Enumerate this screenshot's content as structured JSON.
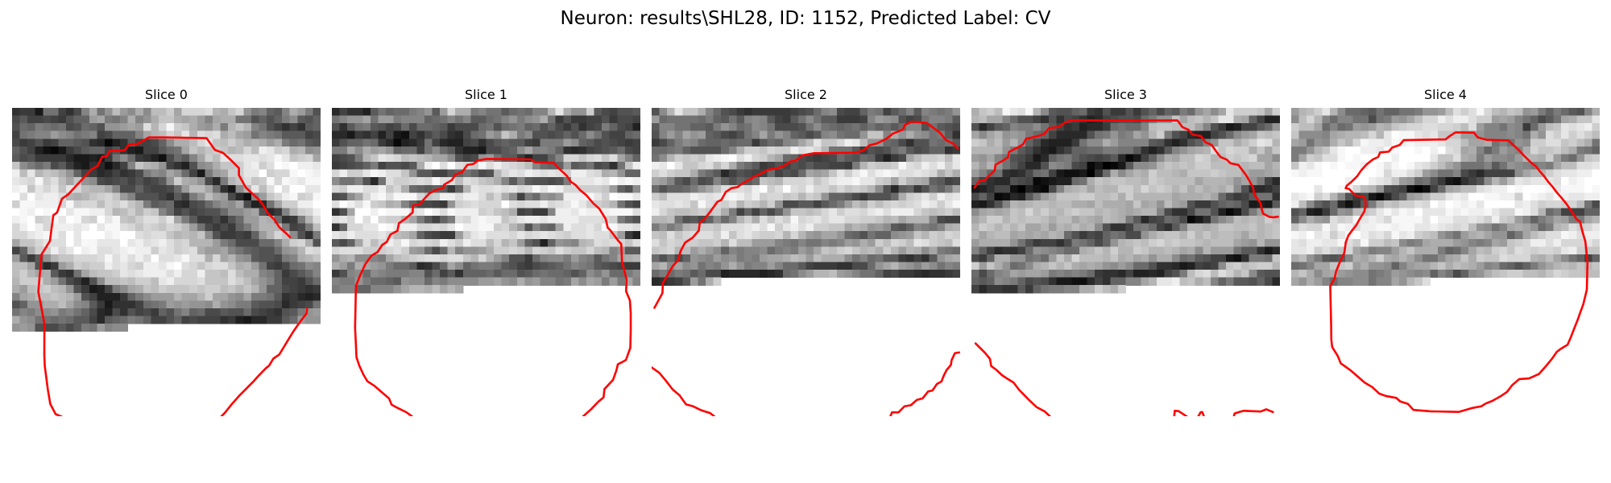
{
  "title": "Neuron: results\\SHL28, ID: 1152, Predicted Label: CV",
  "contour_color": "#ff0000",
  "panels": [
    {
      "title": "Slice 0",
      "contour_segments": [
        "M 4.19,28.00 L 3.40,23.84 L 3.82,19.02 L 4.91,17.26 L 5.34,13.93 L 5.83,13.59 L 6.48,11.77 L 7.24,11.26 L 10.28,7.99 L 11.08,7.55 L 11.68,6.33 L 12.31,6.25 L 12.62,5.60 L 14.58,5.52 L 15.17,4.75 L 16.23,4.68 L 17.74,3.83 L 20.00,3.83 L 25.22,3.93 L 26.30,5.46 L 27.34,5.83 L 28.33,6.73 L 29.41,7.81 L 29.41,8.73 L 30.32,10.35 L 31.98,11.89 L 32.48,12.51 L 33.15,13.66 L 34.00,14.48 L 34.64,15.48 L 35.59,16.33 L 36.04,16.78",
        "M 4.19,28.00 L 4.18,32.08 L 4.24,33.50 L 4.64,36.56 L 4.95,38.41 L 5.65,39.74 L 6.54,40.11 L 7.31,41.00 L 8.47,41.25 L 10.39,42.39 L 11.49,42.51 L 11.83,43.00 L 12.42,43.58 L 14.88,43.59 L 15.51,44.05 L 16.48,44.11 L 17.42,44.63 L 19.48,44.72 L 20.00,44.66 L 21.70,44.46 L 22.65,43.79 L 23.14,43.42 L 24.18,42.55 L 24.82,41.88 L 25.68,41.68 L 26.30,40.88 L 27.60,39.55 L 28.46,38.47 L 29.44,37.36 L 30.29,36.51 L 30.84,35.95 L 31.33,35.46 L 31.86,34.86 L 32.87,33.81 L 33.33,33.43 L 33.88,32.52 L 34.64,32.01 L 35.91,29.92 L 36.50,28.96 L 37.47,27.58 L 38.19,26.66 L 38.24,26.06"
      ],
      "pixels": "BgcHAw4OCAYJEBUOEhcTERURFxcZFBoaGhsWFRgaEg8QDAsQFRMPCgkLCAgJCAcKDAwTFA8OEBUQEhUYGBUUFRMQFBUVDg4KDAoMDxELCgwKDQwPDg0OCQoNDAoSEhMUExsWGh4ZGBUTEhUPFhgWEA4KCAYIBgsMCA4PEBATERAODxAICQwMDBAUFhcaGBwWGxobFRcUEw4QDw4LCwsICQkHCAoHCAwMCwoGBQEEBgsICAkMERUVFxocGBcZFxUWFRMVDw0OCwoMCggEAgEDBwkLDAwICgYEAwgICw0OFBgWGBkYFhcaFx0cGRoVFhESCwkKBwcHBwUDAwQDBw4RDQcGBAIJDQsQFBkXHBsbHBwbHB4cGBkaFBgRDw0PCQsHBAMGBQIFCBAYFhUSCAYEChESFRgYGRwdGRsfHh8dHRwdFxwWGBcVEgwIBwUGCAYHCQ8REBQSDQgDDxMUGRkcHB8ZGhoeIB4dHBsaHhkbFxQYEhEJCAkKCAoICQsSGRUUEgkFDxYYGxgZHhoeHRweHh0eGBwaHBgcGhcWFhQQCQkMCQgICQ0TFxcUDgYDERYcFxsfGx8fHBwfGyAcHR0bFhUWGBkaGBMQCgoKCAYLCA8SFxQTCQUCEBMYGh0eGRoeGR4eHR0dGh4ZGhoXGhkbGBYPCwwNBgUJCg0QEhEUCQQFDhQZGR0dHx8eHR8eICAcHh4dHRoWFxkWGRgQDQgKCAkKCg0RERMUCgUHEBYZGh0dHh8ZGh4cHx4aGR8cHhgXGRsbGRwUDwsHBwkGCg0TExYVDQYHDxYbGh0gHRodHR0cHSIcHh4bGhgaGRgaGRcTDgkHCQcMDxMWFhYPCAkPFxoaHB0eHRsfHB8hIB0eHyEbGhsbGBYXFhgRCgcHCAcMExYaGBEKBg8UGBgaHBsbHxweHhwcHB8cHRscHRsZGhYWFhMPDQkJCQ0NEBUZGhUKCAwVGRkdGhwgHR4bGxwdHh0dGRwbGRobFRMTFBAODAsKCg0SExYbGhMLBwsSFhgYGhoaGx4bHRsdGx8bGxweGxsVGhQWEhELCgoJDxAVFhgXFxQKBQcTFRkYGRkdGxwaGR0dHB4fGxoYGhsbGBUWEw4IBwkNDhEQFxkWFBULBwYOFBcYGBkcGxwdHR0bHRoaHRgYFxsXFRUQDwwHCQsNEBYZGRkVEw4JBwQKERcXGBcZGRccHRoaGhsYGBgbGRcUEhAMCAgHCg0VExcYGRcWEgoHAwQIDxEUFRgXGRgYGBkYGRkXGBYYFhIMDAkIBwYHEBQVFxcYFxYTCggEBAQHDA8RExMTFhQUFhkUFBIRFA8PDgsGBwUEBQoMEhIVFRcUERALBwMGBgYIDQ4PExITEhIRFRIRDw8LCgoJBQcICQ4OEA8RERIPEA4MCQUECQYKCAkHDAoOEAwNCQkLCgoNCQgHBgoLDxITFRIRDg4NDg0LCwgFCwwNDw4MCAgKDAgJCAgIBgcEAwUFBwcLDRMSEhITEgoJCQsJCw8OExAREQ=="
    },
    {
      "title": "Slice 1",
      "contour_segments": [
        "M 3.01,28.55 L 3.12,23.12 L 3.66,21.74 L 4.34,20.26 L 5.13,19.18 L 5.92,18.71 L 6.53,17.78 L 7.11,17.40 L 7.61,16.41 L 8.50,15.95 L 8.69,14.97 L 9.58,14.35 L 10.48,13.56 L 10.51,12.67 L 11.39,12.49 L 11.97,11.81 L 12.62,11.12 L 13.34,10.70 L 14.45,10.39 L 14.54,9.97 L 15.55,9.37 L 16.04,8.64 L 16.91,8.32 L 17.56,7.40 L 18.36,7.27 L 18.94,6.82 L 20.00,6.63 L 25.81,6.69 L 26.32,7.06 L 28.76,7.14 L 29.37,7.80 L 30.46,8.81 L 30.97,9.58 L 31.59,10.00 L 32.19,10.67 L 33.01,11.35 L 33.89,12.38 L 34.69,13.10 L 35.13,13.82 L 35.50,14.40 L 35.77,15.54 L 36.14,15.93 L 37.09,17.19 L 37.52,17.65 L 37.62,20.00 L 38.03,21.52 L 38.21,22.31 L 38.15,23.80 L 38.64,24.97 L 38.75,26.66 L 38.75,28.77 L 38.70,31.12 L 38.14,32.68 L 37.94,32.82 L 37.08,33.27 L 36.89,34.06 L 36.46,35.28 L 35.34,36.49 L 35.23,37.56 L 34.56,38.11 L 33.63,39.08 L 32.61,40.00 L 31.55,40.84 L 30.44,41.44 L 29.45,41.97 L 28.42,42.21 L 27.20,42.50 L 26.44,42.57 L 24.62,42.62 L 23.61,42.68 L 21.15,42.75 L 20.60,43.23 L 18.66,43.33 L 18.24,42.73 L 15.34,42.61 L 14.33,41.86 L 13.15,41.80 L 12.06,41.17 L 10.56,40.15 L 9.66,39.49 L 8.54,38.94 L 7.75,38.51 L 7.42,37.71 L 6.31,36.75 L 5.55,36.09 L 4.60,35.46 L 4.08,34.58 L 3.56,33.45 L 3.19,32.36 L 3.12,30.75 L 3.01,28.55"
      ],
      "pixels": "BQgGBgQLDgwNDQ8QEgsTGhUVDxAODgsNDg0QEBYcFRISGQsJCAoKCw4QEhIUDhMTDxAQEAwNDhAOEAsLDQ4QEg8REhUOBwoHBwgICgcJCQgKBgsODwsKCAkNCQ0NDAsHCQkJDQ4KDQ4PDA0KDAkHCgYICQ8MCQgEBQUDBwYIBAgDAggGCQsJBgUJDQ4TERgVDxEKCgkKDAoNEQ4KCAgMDQcKDAwODQcFAQQFBw4IBQQECAkGCQsMCwsIBw8PDxMRDAsJCgkIBwgPDxQRFRMUEgwNDQgOEQ0LBgQEAwkJCwwRFBAQDwwGBQYICQoLDQkICAkKDxYYHBsaFxgXFhQUEQoICRITDgsLBwQICAwQGhoYGhsYGxQQDAcICQoMDwgKCgkLFR0gGx8bGhkeGx0bGhkXEA0MDBMLDA4JCgYOGB0aHRkZHB4dGxsYEgsLCAgLDA4MCQoWGhwbHRwbHBsZHR0bGhUWEgwMEQ4OEAoFDhsZGRobGh4bGxcbGhgXFRALEAsKCgkKDxwcHB0cHx0eHRoZHR0bGx0YGhUNDAsMCwcMFhwbGxwbHBobHhweHRoaGRkZGBMMChEJChEUGh0eGx4eHhoYGR0dGx0dGxcaFREIDw0SERMdHR0eHBkfHh4cGx8dGx4ZGBUWEAwJCQgHEhkaGxoaGh8bGhsbHRobHB4cGRkYFg4KCAYKFB8gHSIeHh4bHB8dGx4dHR0ZGhgXFQgJBwcQHR0cHh0dHR4eHhsbHBofGx8aGRkWFA8LCAwPGxodHh0dGBocHR0cHR0dHRsbGxoZDwwKBgwaGhwcHx4cHR0aGhsaHCAdHR4eGRoWEwoQDQwUHRsbHBoeHhwcGxwbHRsbGxwaFxYUDAkIBwcTGRwdGxsbGhwaGxwbGhkbGxwbGxgTBwQLCQwUGxcaHRseGhsaGR0bGR0bGxcaFhgTDAoEDBIREBYXGxobGhgbGhsbGxkZGRobGRMSDQkNFhASEhMVGRkaGRYaGRgbGRgYGhcWEBILCxIVFhEREA8UFxgZGhsbGhsbGBYaFhMQCgoHDRAREQ8TEA8LDhAUFRYVEw8VFBMSDw0NCwUGCQ0UEQwODw8OCwoIBwkKCwwOEA8OCwoJCAcHBwoQEQ0REA8PDxAQCg0ICwYMDAwNCw0NCgsNDg0NDAoMEQ8SDQ0PERAPDxIPDQ0MCxIREQ0QDxERERETExQSERUSExAQDg8UERQTDxMPFBAPEBAMDBAQEBIUFhYVFxQWFA=="
    },
    {
      "title": "Slice 2",
      "contour_segments": [
        "M 0.36,25.94 L 0.99,24.79 L 1.39,24.05 L 1.47,22.69 L 2.12,21.61 L 2.74,20.52 L 3.40,19.80 L 3.77,18.55 L 4.34,17.48 L 5.30,16.85 L 6.11,15.93 L 6.24,14.91 L 6.91,14.33 L 7.52,13.57 L 8.53,12.18 L 9.04,11.94 L 9.61,10.91 L 10.37,10.41 L 11.13,10.28 L 11.65,9.88 L 12.45,9.46 L 13.12,9.02 L 14.36,8.43 L 15.00,8.06 L 16.32,7.82 L 17.28,7.46 L 17.95,6.98 L 18.65,6.86 L 19.51,6.17 L 21.06,5.88 L 26.34,5.82 L 27.47,5.52 L 28.24,4.86 L 29.25,4.59 L 30.44,4.00 L 31.26,3.35 L 32.58,2.81 L 32.84,2.20 L 33.73,1.79 L 35.64,1.95 L 36.43,2.51 L 37.39,3.24 L 38.17,4.19 L 39.14,4.66 L 39.69,5.24",
        "M 0.00,33.67 L 0.98,34.37 L 1.83,35.37 L 2.73,36.54 L 3.61,37.29 L 4.46,38.47 L 5.36,38.71 L 6.35,39.20 L 7.57,39.60 L 8.11,40.00 L 8.40,40.56 L 10.25,41.27 L 11.53,41.36 L 12.32,41.96 L 13.12,41.98 L 20.00,41.96 L 23.12,41.98 L 23.67,41.32 L 28.09,41.20 L 28.63,40.58 L 30.25,40.56 L 30.93,40.09 L 31.17,39.49 L 32.00,39.51 L 32.78,38.72 L 33.60,38.58 L 34.40,37.88 L 35.13,37.69 L 35.85,36.79 L 36.41,36.67 L 36.97,35.84 L 37.58,35.50 L 37.87,34.75 L 38.24,34.02 L 38.81,33.33 L 38.88,32.76 L 39.31,31.83 L 39.87,31.73"
      ],
      "pixels": "ChEWHBgYFRANCgkHBgcHBwcHCAkKDRARCQgIDA8OCAsNEAsQDw4PEhMNDg4ODg0PDAsOCxAREAsIBwsOEQ4LCwcHBwgQExIRCggJDhAQDwsLEBAODgwMCw8SEA0OERAOCQkJCg4RDg0MDQ4MDgwNCw0QEAoOCwoJChATEBQSEwwLCQgKDhAUDxIQDAsJCxARDg0NEhgYEBUSFRIRDg8LBgcJDA8REA0MDA0MDQ0HCw0MEBEUFxwYGBodHBcSEg0MCQYKCg4NDgsNDQ4PDAoKCgoNEBUZGRgaGRkdGxwaFg4ODgsHCgkKDQ8LCQoMDAYHDhEWGRgZGBwdHiAbHRoZFhQNDAkIBwgJDQsKDQwHBAcJFBcZGRoXHB0cHxwYGBobFxoVDw0LBwgKCAoJCwkJCAgHDxYZGBgZHhsaHRsdGRwZGxkYGBUPDQsFCAoJCAgNCAoJDRQTFBgcGRweGx0eHRsbHBsaFRgVFBMQCwkNCQoQDAoMCw0YFxYaGhobGBocHR0eHBwZGBQZFhUUDAsICQ0KDAwNDxIUFxsaGxodHxkbHxsaHRoaGBoYGRgWEQoFCwwHCg4MDxQZFxsbGx0cGxwdHh0bHRkaGhgZFhkYEgwMCwkHCgoKDRUZGhwZHRscHBsbHBsYHhsaGRsWGRgWGRIJCQsLCAsNDxMXFRkXGRoZGhsdHBkcHh0aGBcXGBkYGRUPCAwIDAkMEhgYFxgaHBkbGxocHRsdHR0aGBcYGRcWFhcOCgsJDBENEBYZFRsYGxkeGhscGhwcGhoZGRgWFxQWFhYQCQgIDxIPERYXGRkYGxsbHB0bHhkcHRsdGRkYGBQWFRITEQsKDBAPDhAVFhgXGxgaGxsbGR0YGxwaGRkaFhoWExIUFBINDAoODAwREhMYFhkYGhkbGBoZGRkYGBkWGxcXExMTEA8OEA4OEA8QExIVExkXGhkXHBsZGBcbGBkaFhcTFRMRDBAPEBARDQ8QDxMRFBgXGRoYFhcVGRYTFhURFA8ODQ0KDQkMEhEQExESDxAPExQUFRcWExcVFRURDhANDgsLBwYIBgsSFBUUFhEUERIOEA8SFRIPEBATEA0NCwgHBwcGBgkJDRIUFhMSEBMRDhAPDQ8NDw4LDQkJBAUFBQUEBQYNDhETFhYXExIQDg4MCAkHBwYFBgYHCAUGBwgLEw4VGQ=="
    },
    {
      "title": "Slice 3",
      "contour_segments": [
        "M 0.41,10.33 L 0.96,9.56 L 1.73,9.39 L 2.34,8.74 L 3.01,8.15 L 3.12,7.38 L 4.08,6.85 L 4.74,6.41 L 4.86,5.72 L 6.05,5.11 L 6.72,4.71 L 7.08,4.00 L 8.34,3.74 L 9.42,3.40 L 10.05,2.63 L 11.37,2.46 L 12.22,1.84 L 13.15,1.61 L 20.00,1.65 L 26.71,1.63 L 27.36,2.50 L 28.16,2.85 L 28.67,3.48 L 29.75,3.64 L 30.35,4.46 L 31.14,4.80 L 31.73,5.64 L 32.29,6.38 L 33.09,6.70 L 33.59,7.19 L 34.62,7.41 L 35.62,8.75 L 36.02,9.42 L 36.53,10.37 L 36.68,11.27 L 37.48,12.33 L 37.60,12.98 L 37.80,13.70 L 38.59,14.13 L 39.14,14.20 L 39.74,14.12",
        "M 0.53,30.56 L 1.07,31.09 L 1.76,31.78 L 2.40,32.56 L 2.56,33.49 L 3.25,34.01 L 3.99,34.70 L 4.69,35.16 L 5.48,35.65 L 6.19,36.59 L 6.90,37.32 L 7.61,38.04 L 8.43,38.81 L 9.50,39.38 L 10.29,40.13 L 11.15,40.52 L 11.74,40.89 L 12.72,41.60 L 13.25,41.65 L 20.00,41.62 L 20.41,41.37 L 20.98,40.64 L 21.61,40.34 L 26.28,40.18 L 26.36,39.30 L 26.86,39.34 L 28.71,40.56 L 29.43,40.02 L 29.72,39.48 L 29.94,39.47 L 30.18,40.14 L 30.70,40.66 L 32.84,40.93 L 33.95,40.28 L 34.13,39.65 L 34.66,39.48 L 35.30,39.30 L 37.51,39.39 L 38.22,39.11 L 39.10,39.47"
      ],
      "pixels": "FRgZFx4cGx4WEQsKCgwNBwYKBwcKBwoMCQwLDw0SFBEUHBkZGRgUGRYXFBQQDQoKCAYKBgkIBgQFCAkKCgkNDxISGBQXGBYYHBwVFAwIBAQKBQgLDBAPDxEOCwgGBwQFBQcNDg0NEBcYGBcXFxQQCgcDBAgICw0SFBEUFhITEg8NDAgFBQUFCg4PEg8QFBIWGQ8KCAUEBAgKDRETFBgXGBkYFRcTFhIMCQUEBAQHDhERFRMQEBAQCwoGBAYKDBASGBgVFxkcGxYWFhYWEg8LCQYEAwYIDAwNDQ8PDg4LBgQGCxASFBUWGxgaGRkVGBQYExIUEA4KCQcDBQwODwwKCQgJCwUBAwgMERUUFxcaGRYXGRgZGhQUERYTFhIOCwgFBQoREA8JCAEDAAEDCxEREhYYFxgXGRkXFxcXFhcXFBYTEA0OBgUGCQ0OCAMCAgMABg0VERQWFRkXFxYVGBgYGRgXFxUTExQVDAgGBQUKCQgBAgMEBA0OFRgXGBgXFxYZGBcXFxcUFhYWFRIUEg8IBQMEBgkJAgAEAgEJEBUWFxQXFhYZGRcaGBkYFhgVFxUWFRcRCgUFBggJDAgBAgUECw8TFRgYGBkZFxcYFRkWFhYWFhQVFRUWFA0JBwgLDg4GBAMGChAWFRYXFxYXFxUVFBcVFRUUGBQVEhcUEwoHBwoMDQwJAwQDCxEUFRQVGBcaFxkXFhgZGBgWFxYVFBUWFhAJBgYJDg4KBAEDCQ8TFRcUFhkZFhgXGBgXFRcXFBYVFBcWFQ8LBQgJDQwJAQMGDhETFxYXFhkXFhkYFhgWGBQUFhMWFRcVFhEKBgYIDg8NCAYLEBYWFRYYGBcXGBYXGBcUFhcXFBUUFRQWFQ0KBwkIDA4NCQkSFRcYGBYZFhgWFxcWFBcWFxgTFRUVFRIOCgcICAYJDw4MCQwSFhcYFxkaGBkYGBcWFxcXFBMSFhISEAwIBQYGCA0SERAPDQ0VFhgWGRYWGRgWFhcWFBURFhMTEw4LCwYDBQkHDBUVEhIODw0TGBUaFxcXFhgVFhQVEhUVEQ0OCwoICAMCBg8PDhgZExgVEg0OERUWGBYYFRQVFBIRExENDQoGBgUDBAgHCBEYGRcYGRkWDQkNEBEUExQUEw8QDxAPDQcGBgUIBAQFBAgKDxcaGxcbGRYYEQsKCgwLDBEQDwwJCgkGAwMCAgUIBgwMEBAUFhwcHRcYFRcQDA8LCwoMCQUIBQcHBgYLBwwODw8QEBUVGRcVGQ=="
    },
    {
      "title": "Slice 4",
      "contour_segments": [
        "M 9.62,12.00 L 9.39,11.53 L 8.35,11.38 L 7.49,10.51 L 7.06,10.43 L 7.20,10.10 L 7.90,9.51 L 8.55,8.87 L 9.05,8.14 L 9.76,7.35 L 10.59,6.69 L 11.27,6.37 L 11.53,5.78 L 12.63,5.68 L 13.10,5.14 L 14.06,4.82 L 14.59,4.18 L 20.00,4.09 L 20.62,3.61 L 21.31,3.18 L 23.69,3.22 L 24.18,3.82 L 25.36,4.15 L 28.16,4.22 L 28.78,4.82 L 29.51,5.48 L 30.07,6.09 L 31.09,7.10 L 31.71,7.57 L 32.28,8.28 L 32.82,8.90 L 33.31,9.58 L 33.89,10.24 L 34.44,10.97 L 35.01,11.63 L 35.63,12.39 L 36.35,13.40 L 36.99,14.45 L 37.44,14.74 L 37.76,16.06 L 38.14,17.35 L 38.41,20.00 L 38.33,23.57 L 37.87,25.48 L 37.48,26.54 L 37.14,27.51 L 36.76,28.45 L 36.23,29.82 L 35.83,30.73 L 34.92,31.28 L 34.44,31.65 L 33.82,32.54 L 33.03,33.50 L 32.12,34.53 L 30.84,35.10 L 29.56,35.19 L 28.68,35.94 L 27.97,36.86 L 27.14,37.42 L 26.05,38.03 L 25.21,38.36 L 24.64,38.72 L 23.54,38.92 L 21.74,39.44 L 18.05,39.37 L 15.84,39.18 L 15.14,38.41 L 14.12,38.08 L 13.63,37.63 L 12.27,37.38 L 11.40,37.06 L 10.50,36.22 L 9.52,35.64 L 7.72,34.07 L 6.42,33.14 L 6.04,32.20 L 5.31,31.02 L 5.20,30.07 L 5.18,28.35 L 5.06,23.16 L 5.63,22.12 L 5.81,21.24 L 6.31,20.00 L 6.89,18.79 L 7.08,17.41 L 7.41,16.56 L 7.91,15.88 L 8.44,15.21 L 9.01,14.20 L 9.48,13.44 L 9.64,12.69 L 9.62,12.00"
      ],
      "pixels": "ExYXGRwWEQ0NDAsODAwODg8SEhMXGxkbHhoXFhgXEhMPDA8NCwoQFREXGhYQDRAQDg4JDg8TEhQXGhodGx0dGxkZExQTEA4MCQsOFBUYGBwZFxcUDRANDhMSExYVGBkaGhsbGhoZFxsTEBAOERAHDRMXGBwbHB0ZGBERERAUFRYWFxoWHB8eHhwbHBgYGBMTEhAQEBEQDhUSGxkcGRsZFxQTDhIRFRgWGh4dHRweHR4dHR0cGhoXFBQVDhAOEhEZGRsbGBkXFQ4PDxIWGBweHx8dHRweHiAhHiAdHxsaFBUQDA8TERAVGhgYGRcVDw4MDxQZGBsbHh8eHx8gIB0gICIfHBgYGxUUDxMRERATFhYVGRMPDRIYGRgdHB4gHiAeHh0fHhweIB4cGxkXFBIODg4QCw4SERAPEA8UFxcbGxweHR4eHx8hICAfIB4aHR0bGRMRDg4QCQcFCAgICBEUFhYZGxwcHR0hIiMfHyIgHx0gHx0cGxgTEg0OCgcDAgYIChEWExccGxwcHBsfHR4fIB8fHxwfHx4dGhcWEgoJCAIAAggNFBUXFxscHR0fHh8gHx4cHh4eHx4cHR4ZGxYRCgcJAwEFCQwTFBYZGRwdHCAfHh4dHRkgHh0cHh0cHB0dHRcRDAoNBQIGCw8VGBcZGRsaHx0fHh0eHB8fIB8cHRsZGhoZGhcOCQoMBAMHDRIRFxgZHB4cHh0fHBwcHh0eHR0eHBoaHh0bFg0PCAgIDAwMERUTEhsZGh4cHRwaHh4eHhwfHR0bGxwbGR0ZGBMQDA8RFBMPDxQWGBsaGh4bHh0bHR0eHh0eHhwcHRwbGhsXEhEOEBQVFBINDxYXGxkaHB4dHxwdGRweHx0bHBoeHB0ZGBcSEA4TFRYUEhIMDxQXGRsbHh0bHR0cGx0dHBweGxkeGRkXGBEPEBQVFRUTEhAPEBQTGBkaHR0bHRoaGhwaHBwdGRsZGBoUEg8QEBMWGBUVFQ8MDRAUFxYZGhgbGhkaGhkcHRkYGBUXEg8LCgsQFRQWGRUUFhQRDg4RFBUYFRkYGBsaGhoWFRcUEQ4MCAwNDhAUFBgYGRMVEhIRDBATFBQWGBUXFhUTEBENDAoMDxIUFhcWGBYYFhgVERQVExIREQ4PEBMSERARDBAOCQwREhUXGBkZFxcWGBoZGBgXFxQSFRMQDRAQEREOEBAUEhYYGw=="
    }
  ]
}
